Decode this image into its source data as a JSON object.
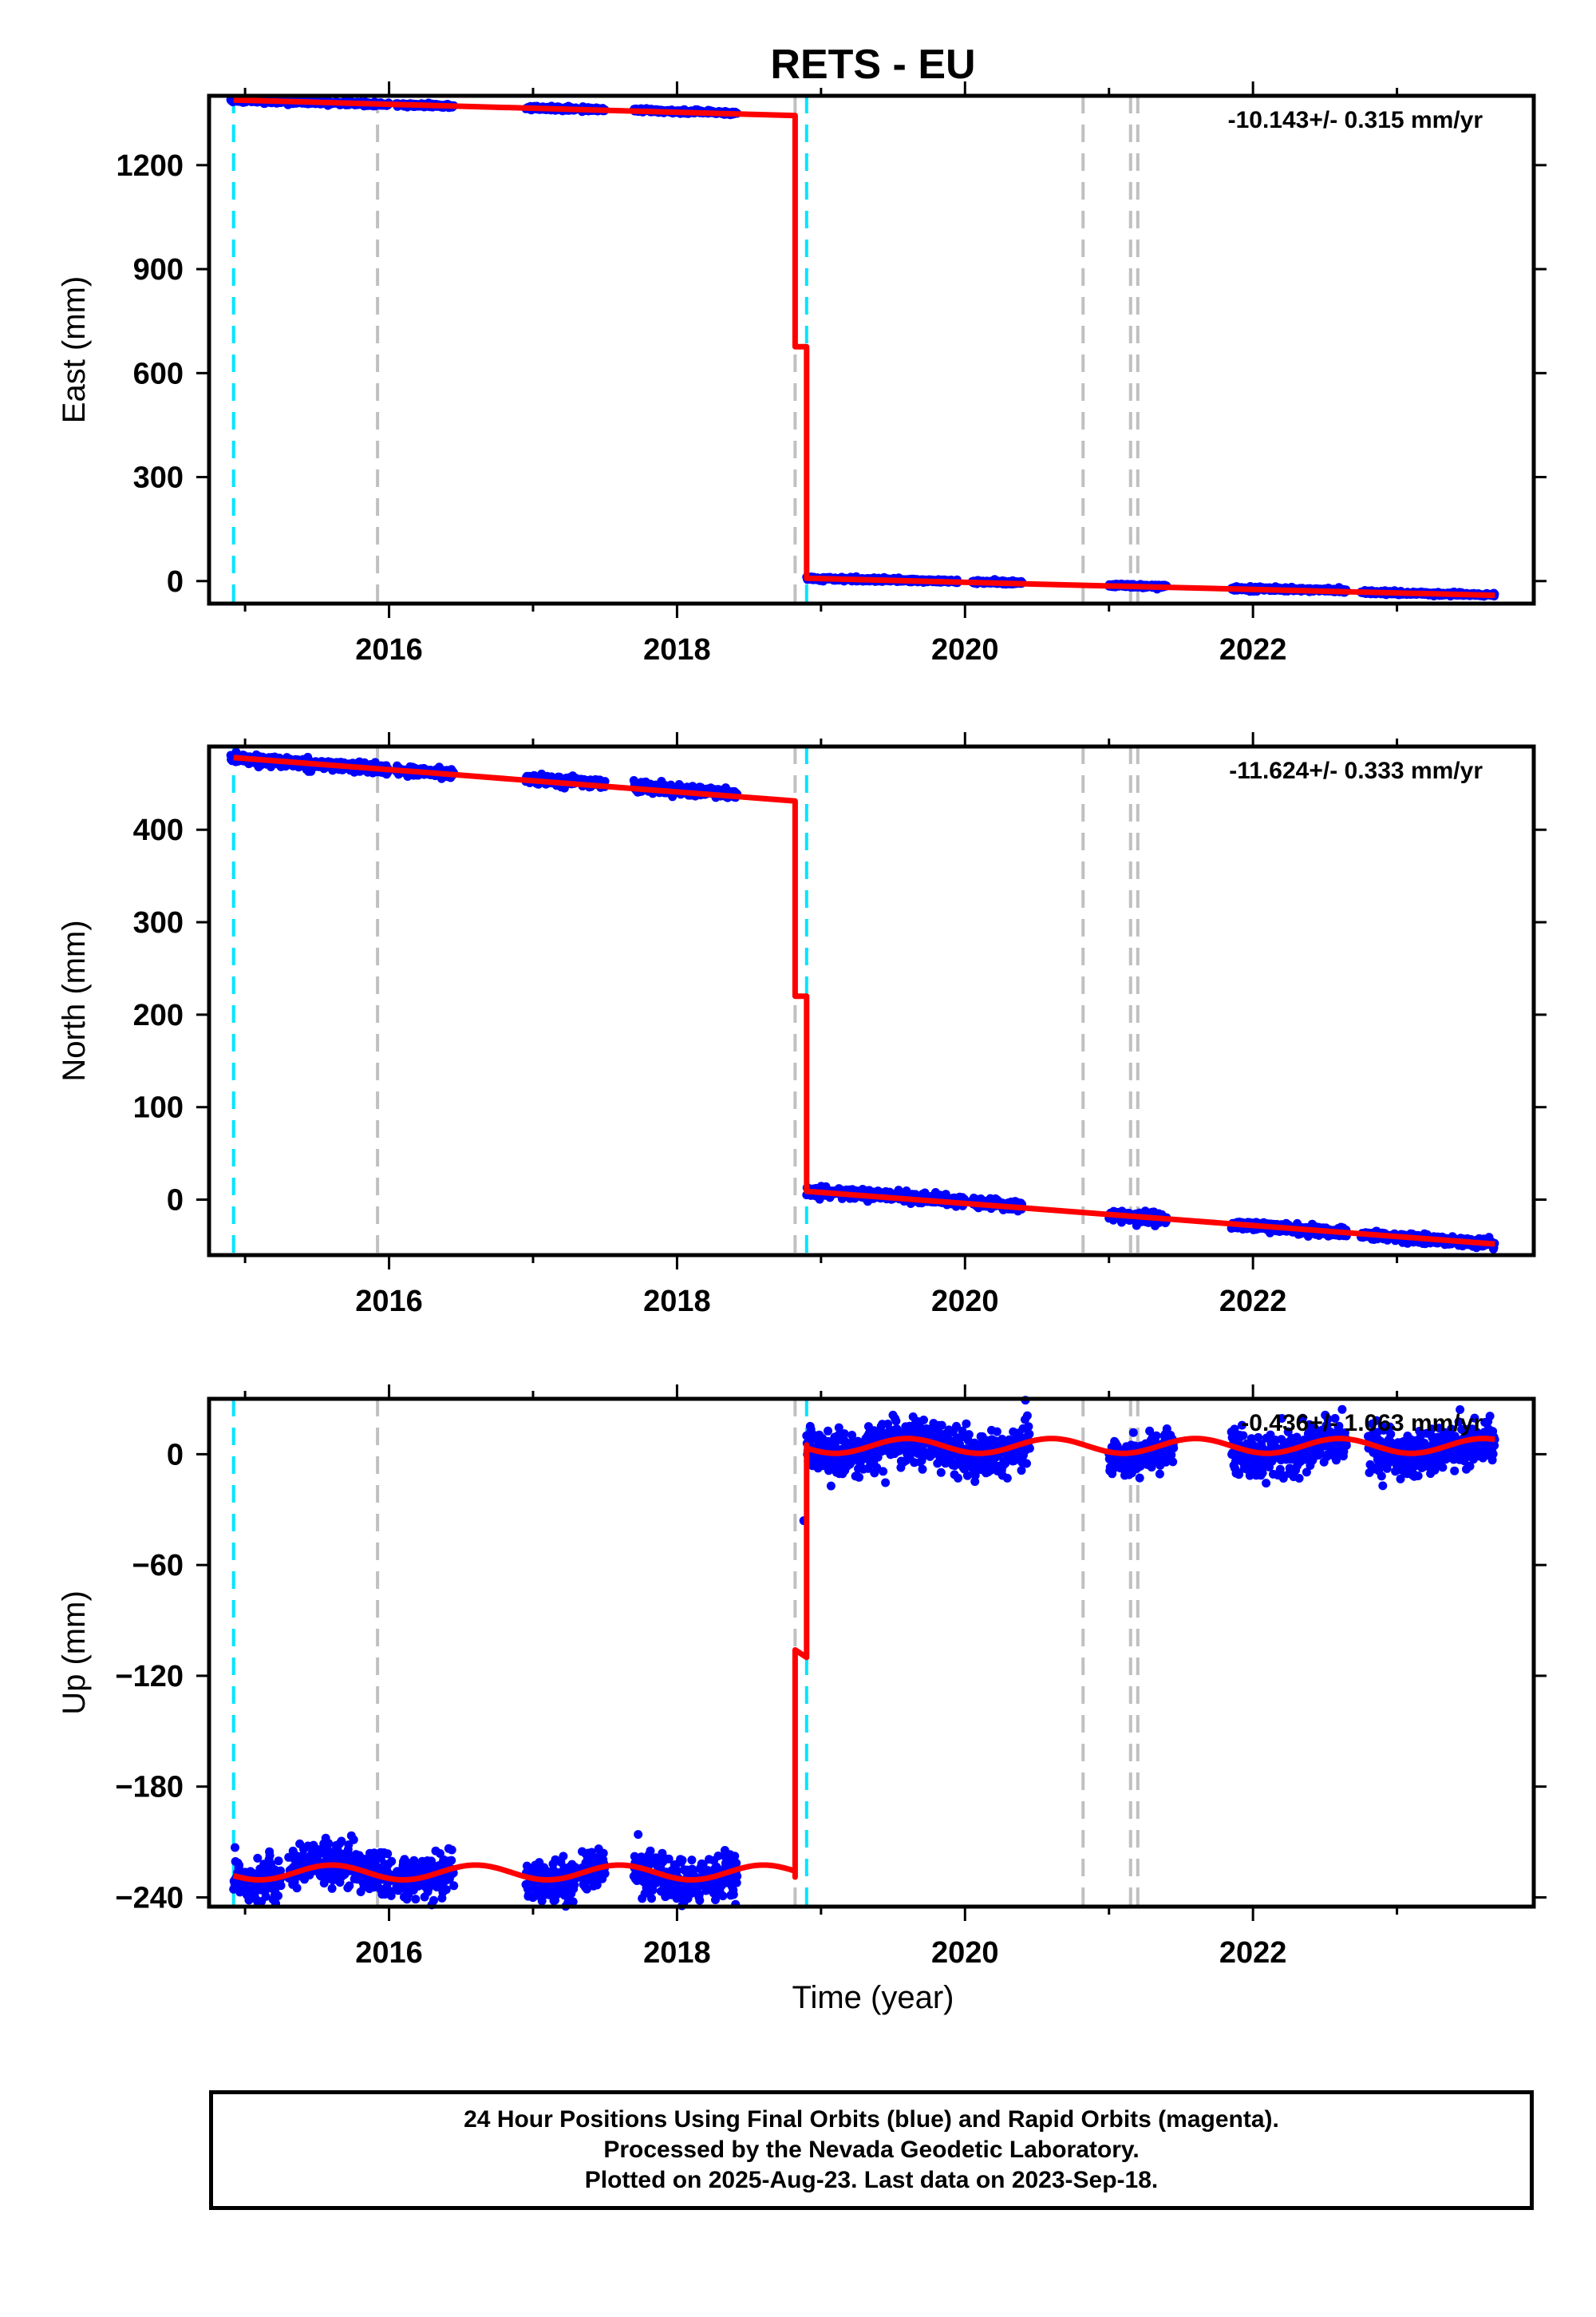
{
  "title": "RETS - EU",
  "xlabel": "Time (year)",
  "colors": {
    "final_orbits": "#0000ff",
    "model": "#ff0000",
    "offset_line_cyan": "#00e5ff",
    "offset_line_gray": "#c0c0c0"
  },
  "chart_data": [
    {
      "type": "scatter",
      "panel": "east",
      "ylabel": "East (mm)",
      "rate": "-10.143+/- 0.315 mm/yr",
      "xlim": [
        2014.75,
        2023.95
      ],
      "ylim": [
        -65,
        1400
      ],
      "xticks": [
        "2016",
        "2018",
        "2020",
        "2022"
      ],
      "yticks": [
        "0",
        "300",
        "600",
        "900",
        "1200"
      ],
      "data_segments": [
        {
          "start": 2014.9,
          "end": 2015.2,
          "y0": 1388,
          "y1": 1384
        },
        {
          "start": 2015.2,
          "end": 2016.0,
          "y0": 1384,
          "y1": 1375
        },
        {
          "start": 2016.05,
          "end": 2016.45,
          "y0": 1374,
          "y1": 1370
        },
        {
          "start": 2016.95,
          "end": 2017.3,
          "y0": 1365,
          "y1": 1362
        },
        {
          "start": 2017.33,
          "end": 2017.5,
          "y0": 1362,
          "y1": 1360
        },
        {
          "start": 2017.7,
          "end": 2018.42,
          "y0": 1358,
          "y1": 1350
        },
        {
          "start": 2018.9,
          "end": 2019.4,
          "y0": 8,
          "y1": 4
        },
        {
          "start": 2019.4,
          "end": 2019.95,
          "y0": 4,
          "y1": -1
        },
        {
          "start": 2020.05,
          "end": 2020.4,
          "y0": -2,
          "y1": -5
        },
        {
          "start": 2021.0,
          "end": 2021.4,
          "y0": -12,
          "y1": -16
        },
        {
          "start": 2021.85,
          "end": 2022.65,
          "y0": -21,
          "y1": -27
        },
        {
          "start": 2022.75,
          "end": 2023.68,
          "y0": -32,
          "y1": -40
        }
      ],
      "noise": 2.5,
      "model_line": [
        [
          2014.92,
          1388
        ],
        [
          2018.82,
          1343
        ],
        [
          2018.82,
          676
        ],
        [
          2018.9,
          676
        ],
        [
          2018.9,
          8
        ],
        [
          2020.8,
          -12
        ],
        [
          2023.68,
          -41
        ]
      ],
      "offsets_cyan": [
        2014.92,
        2018.9
      ],
      "offsets_gray": [
        2015.92,
        2018.82,
        2020.82,
        2021.15,
        2021.2
      ]
    },
    {
      "type": "scatter",
      "panel": "north",
      "ylabel": "North (mm)",
      "rate": "-11.624+/- 0.333 mm/yr",
      "xlim": [
        2014.75,
        2023.95
      ],
      "ylim": [
        -60,
        490
      ],
      "xticks": [
        "2016",
        "2018",
        "2020",
        "2022"
      ],
      "yticks": [
        "0",
        "100",
        "200",
        "300",
        "400"
      ],
      "data_segments": [
        {
          "start": 2014.9,
          "end": 2015.2,
          "y0": 478,
          "y1": 474
        },
        {
          "start": 2015.2,
          "end": 2016.0,
          "y0": 474,
          "y1": 465
        },
        {
          "start": 2016.05,
          "end": 2016.45,
          "y0": 464,
          "y1": 460
        },
        {
          "start": 2016.95,
          "end": 2017.3,
          "y0": 455,
          "y1": 452
        },
        {
          "start": 2017.33,
          "end": 2017.5,
          "y0": 452,
          "y1": 450
        },
        {
          "start": 2017.7,
          "end": 2018.42,
          "y0": 447,
          "y1": 438
        },
        {
          "start": 2018.9,
          "end": 2019.5,
          "y0": 9,
          "y1": 4
        },
        {
          "start": 2019.5,
          "end": 2020.0,
          "y0": 4,
          "y1": -2
        },
        {
          "start": 2020.05,
          "end": 2020.4,
          "y0": -3,
          "y1": -7
        },
        {
          "start": 2021.0,
          "end": 2021.4,
          "y0": -17,
          "y1": -21
        },
        {
          "start": 2021.85,
          "end": 2022.65,
          "y0": -27,
          "y1": -36
        },
        {
          "start": 2022.75,
          "end": 2023.68,
          "y0": -38,
          "y1": -48
        }
      ],
      "noise": 2.5,
      "model_line": [
        [
          2014.92,
          478
        ],
        [
          2018.82,
          431
        ],
        [
          2018.82,
          220
        ],
        [
          2018.9,
          220
        ],
        [
          2018.9,
          9
        ],
        [
          2023.68,
          -48
        ]
      ],
      "offsets_cyan": [
        2014.92,
        2018.9
      ],
      "offsets_gray": [
        2015.92,
        2018.82,
        2020.82,
        2021.15,
        2021.2
      ]
    },
    {
      "type": "scatter",
      "panel": "up",
      "ylabel": "Up (mm)",
      "rate": "-0.436+/- 1.063 mm/yr",
      "xlim": [
        2014.75,
        2023.95
      ],
      "ylim": [
        -245,
        30
      ],
      "xticks": [
        "2016",
        "2018",
        "2020",
        "2022"
      ],
      "yticks": [
        "-240",
        "-180",
        "-120",
        "-60",
        "0"
      ],
      "data_segments": [
        {
          "start": 2014.92,
          "end": 2015.25,
          "y0": -227,
          "y1": -227
        },
        {
          "start": 2015.3,
          "end": 2016.02,
          "y0": -225,
          "y1": -225
        },
        {
          "start": 2016.05,
          "end": 2016.45,
          "y0": -227,
          "y1": -227
        },
        {
          "start": 2016.95,
          "end": 2017.3,
          "y0": -228,
          "y1": -228
        },
        {
          "start": 2017.33,
          "end": 2017.5,
          "y0": -227,
          "y1": -227
        },
        {
          "start": 2017.7,
          "end": 2018.42,
          "y0": -228,
          "y1": -228
        },
        {
          "start": 2018.9,
          "end": 2020.45,
          "y0": 3,
          "y1": 3
        },
        {
          "start": 2021.0,
          "end": 2021.45,
          "y0": 2,
          "y1": 2
        },
        {
          "start": 2021.85,
          "end": 2022.65,
          "y0": 3,
          "y1": 3
        },
        {
          "start": 2022.8,
          "end": 2023.68,
          "y0": 3,
          "y1": 3
        }
      ],
      "noise": 6,
      "seasonal": {
        "amplitude": 4,
        "phase": 2015.6
      },
      "model_lower": {
        "start": 2014.92,
        "end": 2018.82,
        "base": -226.5
      },
      "model_jump": [
        [
          2018.82,
          -229
        ],
        [
          2018.82,
          -106
        ],
        [
          2018.9,
          -110
        ],
        [
          2018.9,
          5
        ]
      ],
      "model_upper": {
        "start": 2018.9,
        "end": 2023.68,
        "base": 4.5
      },
      "outliers": [
        [
          2014.93,
          -213
        ],
        [
          2018.88,
          -36
        ]
      ],
      "offsets_cyan": [
        2014.92,
        2018.9
      ],
      "offsets_gray": [
        2015.92,
        2018.82,
        2020.82,
        2021.15,
        2021.2
      ]
    }
  ],
  "footer": {
    "line1": "24 Hour Positions Using Final Orbits (blue) and Rapid Orbits (magenta).",
    "line2": "Processed by the Nevada Geodetic Laboratory.",
    "line3": "Plotted on 2025-Aug-23. Last data on 2023-Sep-18."
  }
}
